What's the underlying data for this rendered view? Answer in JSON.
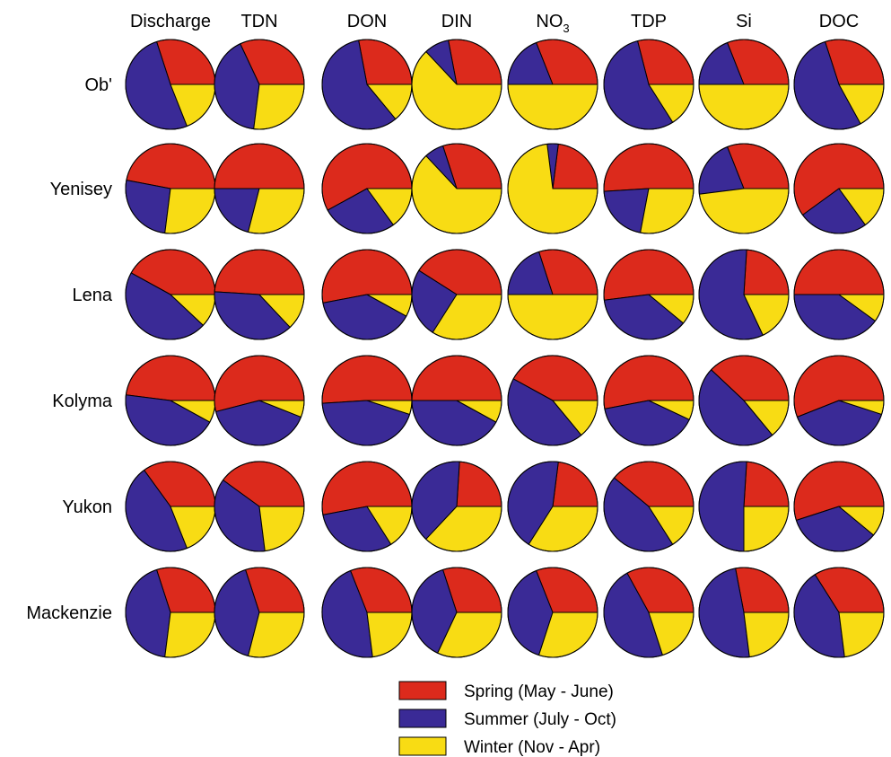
{
  "chart_data": {
    "type": "pie",
    "columns": [
      {
        "label": "Discharge"
      },
      {
        "label": "TDN"
      },
      {
        "label": "DON"
      },
      {
        "label": "DIN"
      },
      {
        "label": "NO",
        "sub": "3"
      },
      {
        "label": "TDP"
      },
      {
        "label": "Si"
      },
      {
        "label": "DOC"
      }
    ],
    "rows": [
      {
        "label": "Ob'",
        "pies": [
          [
            0.3,
            0.51,
            0.19
          ],
          [
            0.32,
            0.41,
            0.27
          ],
          [
            0.28,
            0.58,
            0.14
          ],
          [
            0.28,
            0.09,
            0.63
          ],
          [
            0.31,
            0.19,
            0.5
          ],
          [
            0.29,
            0.55,
            0.16
          ],
          [
            0.31,
            0.19,
            0.5
          ],
          [
            0.3,
            0.53,
            0.17
          ]
        ]
      },
      {
        "label": "Yenisey",
        "pies": [
          [
            0.47,
            0.26,
            0.27
          ],
          [
            0.5,
            0.21,
            0.29
          ],
          [
            0.58,
            0.27,
            0.15
          ],
          [
            0.3,
            0.07,
            0.63
          ],
          [
            0.23,
            0.04,
            0.73
          ],
          [
            0.51,
            0.21,
            0.28
          ],
          [
            0.31,
            0.21,
            0.48
          ],
          [
            0.6,
            0.25,
            0.15
          ]
        ]
      },
      {
        "label": "Lena",
        "pies": [
          [
            0.42,
            0.46,
            0.12
          ],
          [
            0.49,
            0.38,
            0.13
          ],
          [
            0.53,
            0.39,
            0.08
          ],
          [
            0.41,
            0.25,
            0.34
          ],
          [
            0.3,
            0.2,
            0.5
          ],
          [
            0.52,
            0.37,
            0.11
          ],
          [
            0.24,
            0.58,
            0.18
          ],
          [
            0.5,
            0.4,
            0.1
          ]
        ]
      },
      {
        "label": "Kolyma",
        "pies": [
          [
            0.48,
            0.44,
            0.08
          ],
          [
            0.54,
            0.4,
            0.06
          ],
          [
            0.51,
            0.44,
            0.05
          ],
          [
            0.5,
            0.42,
            0.08
          ],
          [
            0.42,
            0.44,
            0.14
          ],
          [
            0.53,
            0.4,
            0.07
          ],
          [
            0.38,
            0.48,
            0.14
          ],
          [
            0.56,
            0.39,
            0.05
          ]
        ]
      },
      {
        "label": "Yukon",
        "pies": [
          [
            0.35,
            0.46,
            0.19
          ],
          [
            0.4,
            0.37,
            0.23
          ],
          [
            0.53,
            0.31,
            0.16
          ],
          [
            0.24,
            0.39,
            0.37
          ],
          [
            0.23,
            0.43,
            0.34
          ],
          [
            0.39,
            0.45,
            0.16
          ],
          [
            0.24,
            0.51,
            0.25
          ],
          [
            0.55,
            0.34,
            0.11
          ]
        ]
      },
      {
        "label": "Mackenzie",
        "pies": [
          [
            0.3,
            0.43,
            0.27
          ],
          [
            0.3,
            0.41,
            0.29
          ],
          [
            0.31,
            0.46,
            0.23
          ],
          [
            0.3,
            0.38,
            0.32
          ],
          [
            0.31,
            0.39,
            0.3
          ],
          [
            0.33,
            0.47,
            0.2
          ],
          [
            0.28,
            0.49,
            0.23
          ],
          [
            0.34,
            0.43,
            0.23
          ]
        ]
      }
    ],
    "legend": {
      "position": "bottom-right",
      "items": [
        {
          "label": "Spring (May - June)",
          "color": "#dc2a1c"
        },
        {
          "label": "Summer (July - Oct)",
          "color": "#3a2a96"
        },
        {
          "label": "Winter (Nov - Apr)",
          "color": "#f8dc14"
        }
      ]
    }
  }
}
